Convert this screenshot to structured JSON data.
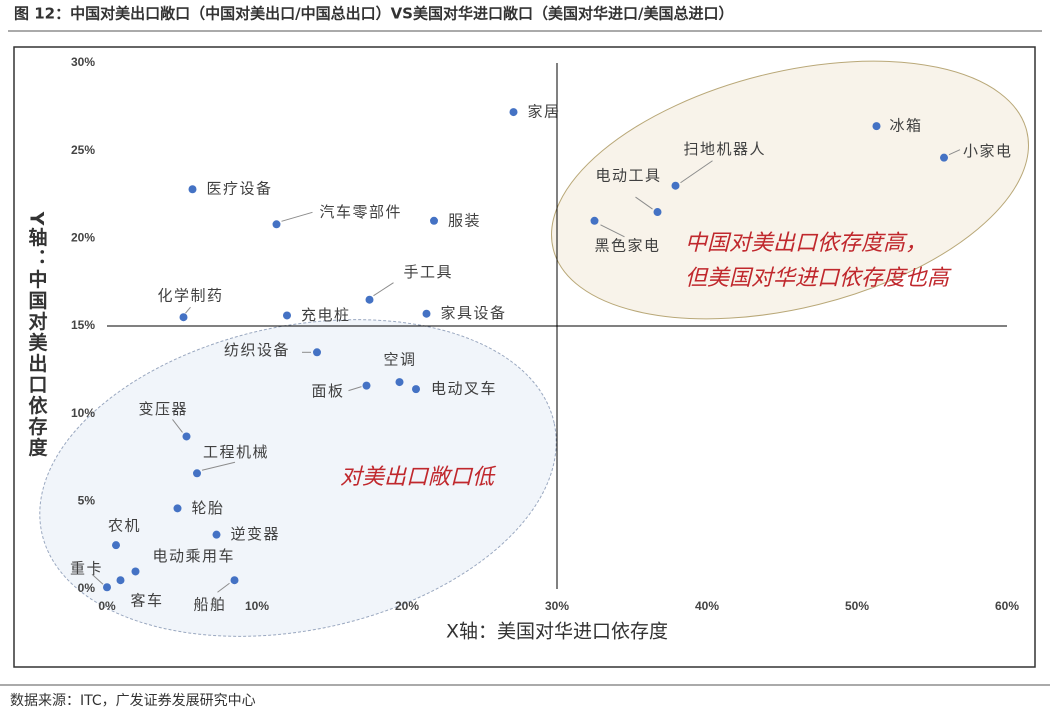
{
  "chart_data": {
    "type": "scatter",
    "title": "图 12：中国对美出口敞口（中国对美出口/中国总出口）VS美国对华进口敞口（美国对华进口/美国总进口）",
    "x_label": "X轴：美国对华进口依存度",
    "y_label": "Y轴：中国对美出口依存度",
    "point_labels": [
      "家居",
      "冰箱",
      "小家电",
      "扫地机器人",
      "电动工具",
      "黑色家电",
      "医疗设备",
      "汽车零部件",
      "服装",
      "手工具",
      "化学制药",
      "充电桩",
      "家具设备",
      "纺织设备",
      "空调",
      "面板",
      "电动叉车",
      "变压器",
      "工程机械",
      "轮胎",
      "逆变器",
      "农机",
      "电动乘用车",
      "重卡",
      "客车",
      "船舶"
    ],
    "x": [
      27.1,
      51.3,
      55.8,
      37.9,
      36.7,
      32.5,
      5.7,
      11.3,
      21.8,
      17.5,
      5.1,
      12.0,
      21.3,
      14.0,
      19.5,
      17.3,
      20.6,
      5.3,
      6.0,
      4.7,
      7.3,
      0.6,
      1.9,
      0.0,
      0.9,
      8.5
    ],
    "values": [
      27.2,
      26.4,
      24.6,
      23.0,
      21.5,
      21.0,
      22.8,
      20.8,
      21.0,
      16.5,
      15.5,
      15.6,
      15.7,
      13.5,
      11.8,
      11.6,
      11.4,
      8.7,
      6.6,
      4.6,
      3.1,
      2.5,
      1.0,
      0.1,
      0.5,
      0.5
    ],
    "color": "#4472c4",
    "xlim": [
      0,
      60
    ],
    "ylim": [
      0,
      30
    ],
    "xticks": [
      {
        "value": 0,
        "label": "0%"
      },
      {
        "value": 10,
        "label": "10%"
      },
      {
        "value": 20,
        "label": "20%"
      },
      {
        "value": 30,
        "label": "30%"
      },
      {
        "value": 40,
        "label": "40%"
      },
      {
        "value": 50,
        "label": "50%"
      },
      {
        "value": 60,
        "label": "60%"
      }
    ],
    "yticks": [
      {
        "value": 0,
        "label": "0%"
      },
      {
        "value": 5,
        "label": "5%"
      },
      {
        "value": 10,
        "label": "10%"
      },
      {
        "value": 15,
        "label": "15%"
      },
      {
        "value": 20,
        "label": "20%"
      },
      {
        "value": 25,
        "label": "25%"
      },
      {
        "value": 30,
        "label": "30%"
      }
    ],
    "annotations": [
      "中国对美出口依存度高，",
      "但美国对华进口依存度也高",
      "对美出口敞口低"
    ],
    "source": "数据来源：ITC，广发证券发展研究中心"
  }
}
